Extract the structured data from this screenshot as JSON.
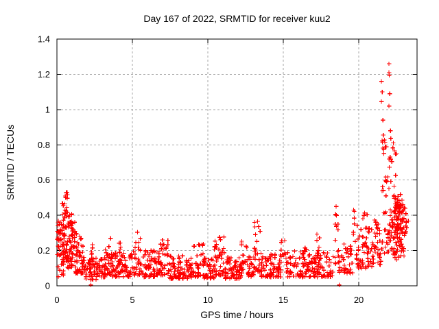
{
  "figure": {
    "background": "#ffffff"
  },
  "chart_data": {
    "type": "scatter",
    "title": "Day 167 of 2022, SRMTID for receiver kuu2",
    "xlabel": "GPS time / hours",
    "ylabel": "SRMTID / TECUs",
    "xlim": [
      0,
      23.86
    ],
    "ylim": [
      0,
      1.4
    ],
    "xticks": {
      "values": [
        0,
        5,
        10,
        15,
        20
      ],
      "labels": [
        "0",
        "5",
        "10",
        "15",
        "20"
      ]
    },
    "yticks": {
      "values": [
        0,
        0.2,
        0.4,
        0.6,
        0.8,
        1.0,
        1.2,
        1.4
      ],
      "labels": [
        "0",
        "0.2",
        "0.4",
        "0.6",
        "0.8",
        "1",
        "1.2",
        "1.4"
      ]
    },
    "grid": {
      "visible": true,
      "color": "#a6a6a6",
      "dash": "3,3"
    },
    "axis_color": "#000000",
    "legend": "none",
    "series": [
      {
        "name": "SRMTID",
        "marker": "plus",
        "color": "#ff0000"
      }
    ],
    "distribution_note": "~1600 red plus markers: dense 0.1-0.5 TECUs during hours 0-1.5, quiet band 0.05-0.2 through hours 2-19 with intermittent spikes to 0.25-0.45, near-zero outliers at hours 2.25 and 18.7, activity rising after hour 20 to a peak of ~1.26 TECUs near hour 22, ending around 0.3-0.45 at hour 23.3",
    "generation": {
      "seed": 42,
      "segments": [
        [
          0.02,
          0.3,
          28,
          0.17,
          0.4,
          1.2
        ],
        [
          0.05,
          0.45,
          8,
          0.05,
          0.13,
          1.0
        ],
        [
          0.3,
          0.7,
          60,
          0.12,
          0.47,
          1.4
        ],
        [
          0.4,
          0.75,
          6,
          0.44,
          0.53,
          1.0
        ],
        [
          0.7,
          1.2,
          70,
          0.1,
          0.42,
          1.6
        ],
        [
          1.2,
          1.8,
          55,
          0.07,
          0.3,
          1.7
        ],
        [
          1.8,
          2.6,
          50,
          0.035,
          0.16,
          1.4
        ],
        [
          2.15,
          2.45,
          10,
          0.1,
          0.28,
          1.3
        ],
        [
          2.6,
          3.2,
          40,
          0.05,
          0.17,
          1.5
        ],
        [
          3.2,
          3.6,
          26,
          0.06,
          0.34,
          1.9
        ],
        [
          3.6,
          5.0,
          85,
          0.05,
          0.19,
          1.7
        ],
        [
          4.1,
          4.35,
          8,
          0.12,
          0.25,
          1.2
        ],
        [
          5.0,
          5.6,
          32,
          0.06,
          0.31,
          1.9
        ],
        [
          5.6,
          6.6,
          60,
          0.05,
          0.2,
          1.6
        ],
        [
          6.6,
          7.4,
          48,
          0.06,
          0.27,
          1.8
        ],
        [
          7.4,
          9.0,
          95,
          0.04,
          0.17,
          1.6
        ],
        [
          9.0,
          9.7,
          32,
          0.05,
          0.25,
          1.7
        ],
        [
          9.7,
          10.4,
          45,
          0.04,
          0.16,
          1.5
        ],
        [
          10.4,
          11.1,
          45,
          0.06,
          0.28,
          1.7
        ],
        [
          11.1,
          12.2,
          70,
          0.04,
          0.17,
          1.5
        ],
        [
          12.2,
          12.6,
          18,
          0.07,
          0.26,
          1.5
        ],
        [
          12.6,
          13.05,
          25,
          0.05,
          0.18,
          1.4
        ],
        [
          13.05,
          13.55,
          26,
          0.08,
          0.37,
          1.8
        ],
        [
          13.55,
          14.85,
          80,
          0.05,
          0.18,
          1.6
        ],
        [
          14.85,
          15.15,
          10,
          0.1,
          0.26,
          1.2
        ],
        [
          15.15,
          16.8,
          80,
          0.05,
          0.2,
          1.6
        ],
        [
          16.3,
          16.6,
          8,
          0.12,
          0.22,
          1.0
        ],
        [
          17.2,
          17.5,
          14,
          0.08,
          0.3,
          1.4
        ],
        [
          16.8,
          18.3,
          70,
          0.05,
          0.19,
          1.5
        ],
        [
          18.35,
          18.65,
          12,
          0.12,
          0.44,
          1.4
        ],
        [
          18.65,
          19.6,
          45,
          0.07,
          0.24,
          1.4
        ],
        [
          19.6,
          19.9,
          12,
          0.14,
          0.44,
          1.5
        ],
        [
          19.9,
          20.9,
          55,
          0.1,
          0.33,
          1.5
        ],
        [
          20.25,
          20.65,
          6,
          0.3,
          0.42,
          1.0
        ],
        [
          20.9,
          21.5,
          38,
          0.12,
          0.38,
          1.3
        ],
        [
          21.5,
          22.6,
          85,
          0.18,
          0.8,
          1.8
        ],
        [
          21.5,
          22.3,
          10,
          0.76,
          0.83,
          1.0
        ],
        [
          22.3,
          23.0,
          55,
          0.15,
          0.55,
          1.2
        ],
        [
          22.4,
          22.95,
          45,
          0.31,
          0.47,
          1.0
        ],
        [
          22.95,
          23.3,
          14,
          0.25,
          0.45,
          1.0
        ]
      ]
    },
    "extreme_points": [
      [
        2.25,
        0.005
      ],
      [
        18.7,
        0.005
      ],
      [
        21.5,
        1.16
      ],
      [
        21.55,
        1.1
      ],
      [
        21.5,
        1.045
      ],
      [
        21.6,
        0.94
      ],
      [
        21.62,
        0.855
      ],
      [
        22.0,
        1.26
      ],
      [
        22.0,
        1.21
      ],
      [
        22.02,
        1.195
      ],
      [
        22.05,
        1.09
      ],
      [
        22.0,
        1.02
      ],
      [
        22.1,
        0.88
      ],
      [
        22.12,
        0.835
      ],
      [
        0.55,
        0.51
      ],
      [
        0.62,
        0.53
      ],
      [
        22.5,
        0.148
      ],
      [
        13.3,
        0.365
      ],
      [
        18.5,
        0.45
      ]
    ]
  }
}
